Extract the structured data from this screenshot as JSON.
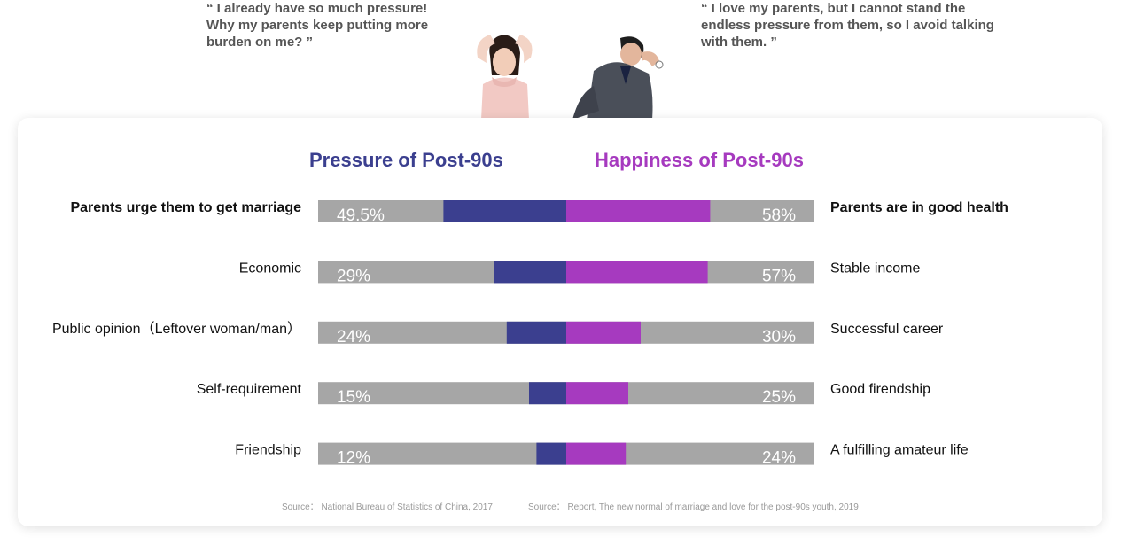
{
  "quotes": {
    "left": "“ I already have so much pressure! Why my parents keep putting more burden on me? ”",
    "right": "“ I love my parents, but I cannot stand the endless pressure from them, so I avoid talking with them. ”"
  },
  "chart_data": {
    "type": "bar",
    "series": [
      {
        "name": "Pressure of Post-90s",
        "color": "#3b3f8f",
        "categories": [
          "Parents urge them to get marriage",
          "Economic",
          "Public opinion（Leftover woman/man）",
          "Self-requirement",
          "Friendship"
        ],
        "values": [
          49.5,
          29,
          24,
          15,
          12
        ],
        "labels": [
          "49.5%",
          "29%",
          "24%",
          "15%",
          "12%"
        ]
      },
      {
        "name": "Happiness of Post-90s",
        "color": "#a63abf",
        "categories": [
          "Parents are in good health",
          "Stable income",
          "Successful career",
          "Good firendship",
          "A fulfilling amateur life"
        ],
        "values": [
          58,
          57,
          30,
          25,
          24
        ],
        "labels": [
          "58%",
          "57%",
          "30%",
          "25%",
          "24%"
        ]
      }
    ],
    "bold_rows": [
      0
    ],
    "background_color": "#a6a6a6"
  },
  "sources": {
    "left": "Source： National Bureau of Statistics of China, 2017",
    "right": "Source： Report, The new normal of marriage and love for the post-90s youth, 2019"
  }
}
